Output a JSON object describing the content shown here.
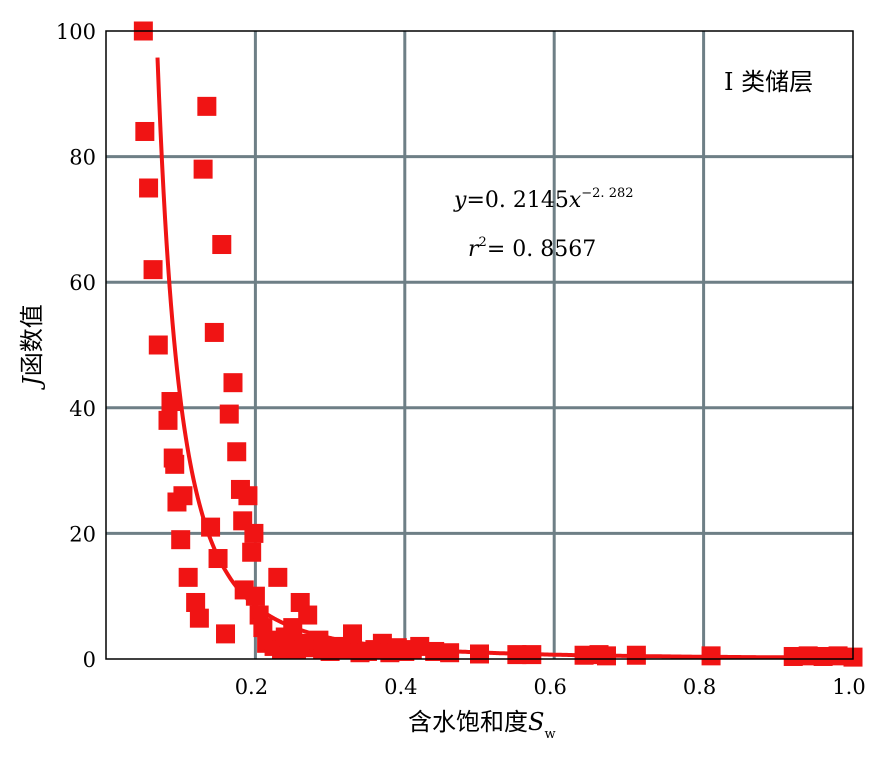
{
  "chart_data": {
    "type": "scatter",
    "title": "",
    "xlabel": "含水饱和度",
    "xlabel_symbol": "S",
    "xlabel_subscript": "w",
    "ylabel_symbol": "J",
    "ylabel": "函数值",
    "xlim": [
      0.0,
      1.0
    ],
    "ylim": [
      0,
      100
    ],
    "x_ticks": [
      0.2,
      0.4,
      0.6,
      0.8,
      1.0
    ],
    "x_tick_labels": [
      "0.2",
      "0.4",
      "0.6",
      "0.8",
      "1.0"
    ],
    "y_ticks": [
      0,
      20,
      40,
      60,
      80,
      100
    ],
    "y_tick_labels": [
      "0",
      "20",
      "40",
      "60",
      "80",
      "100"
    ],
    "grid": true,
    "legend_label": "I 类储层",
    "legend_position": "top-right",
    "marker_color": "#f01414",
    "fit_color": "#f01414",
    "grid_color": "#6e7f86",
    "annotation": {
      "equation_y": "y",
      "equation_eq": "=0. 2145",
      "equation_x": "x",
      "equation_exp": "−2. 282",
      "r2_r": "r",
      "r2_sup": "2",
      "r2_value": "= 0. 8567"
    },
    "fit": {
      "coefficient": 0.2145,
      "exponent": -2.282
    },
    "series": [
      {
        "x": [
          0.05,
          0.052,
          0.057,
          0.063,
          0.07,
          0.083,
          0.087,
          0.09,
          0.092,
          0.095,
          0.1,
          0.103,
          0.11,
          0.12,
          0.125,
          0.13,
          0.135,
          0.14,
          0.145,
          0.15,
          0.155,
          0.16,
          0.165,
          0.17,
          0.175,
          0.18,
          0.183,
          0.185,
          0.19,
          0.195,
          0.198,
          0.2,
          0.205,
          0.21,
          0.215,
          0.22,
          0.225,
          0.23,
          0.235,
          0.24,
          0.245,
          0.25,
          0.255,
          0.26,
          0.265,
          0.27,
          0.275,
          0.28,
          0.285,
          0.29,
          0.3,
          0.31,
          0.32,
          0.33,
          0.34,
          0.35,
          0.36,
          0.37,
          0.38,
          0.39,
          0.4,
          0.41,
          0.42,
          0.44,
          0.46,
          0.5,
          0.55,
          0.57,
          0.64,
          0.66,
          0.67,
          0.71,
          0.81,
          0.92,
          0.94,
          0.96,
          0.98,
          1.0
        ],
        "y": [
          100,
          84,
          75,
          62,
          50,
          38,
          41,
          32,
          31,
          25,
          19,
          26,
          13,
          9,
          6.5,
          78,
          88,
          21,
          52,
          16,
          66,
          4,
          39,
          44,
          33,
          27,
          22,
          11,
          26,
          17,
          20,
          10,
          7,
          5,
          2.5,
          3,
          2,
          13,
          1.5,
          3.5,
          2,
          5,
          1.5,
          9,
          2.5,
          7,
          1.8,
          2,
          3,
          1.5,
          1.2,
          2,
          1.5,
          4,
          1,
          1.2,
          1.5,
          2.5,
          1,
          1.8,
          1.2,
          1.5,
          2,
          1.2,
          1,
          0.8,
          0.7,
          0.7,
          0.6,
          0.7,
          0.5,
          0.6,
          0.5,
          0.4,
          0.5,
          0.4,
          0.5,
          0.3
        ]
      }
    ]
  }
}
